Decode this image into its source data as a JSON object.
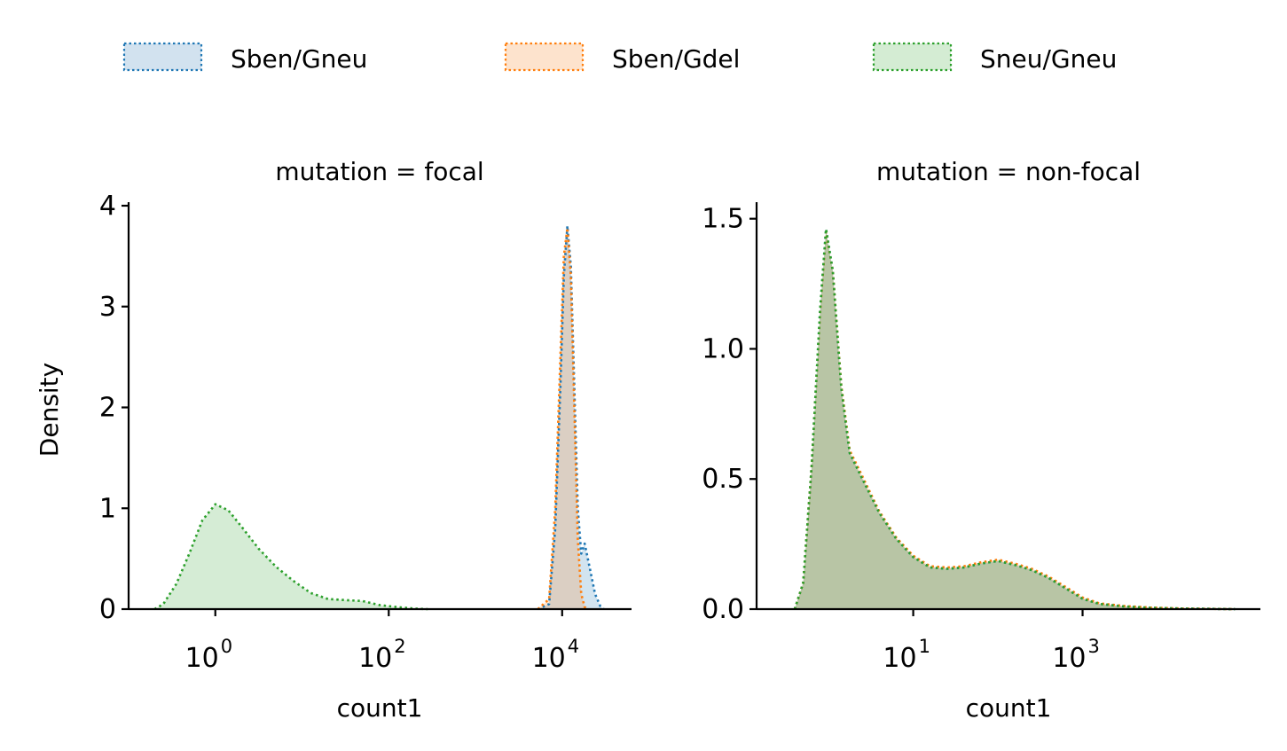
{
  "legend": {
    "placement": "top-center",
    "items": [
      {
        "label": "Sben/Gneu",
        "color": "#1f77b4",
        "fill": "#d2e2ef"
      },
      {
        "label": "Sben/Gdel",
        "color": "#ff7f0e",
        "fill": "#fde3cd"
      },
      {
        "label": "Sneu/Gneu",
        "color": "#2ca02c",
        "fill": "#d4ecd3"
      }
    ]
  },
  "chart_data": [
    {
      "type": "area",
      "title": "mutation = focal",
      "xlabel": "count1",
      "ylabel": "Density",
      "x_scale": "log10",
      "xlim_log10": [
        -1.0,
        4.8
      ],
      "ylim": [
        0,
        4
      ],
      "yticks": [
        0,
        1,
        2,
        3,
        4
      ],
      "ytick_labels": [
        "0",
        "1",
        "2",
        "3",
        "4"
      ],
      "xticks_log10": [
        0,
        2,
        4
      ],
      "xtick_base": [
        "10",
        "10",
        "10"
      ],
      "xtick_exp": [
        "0",
        "2",
        "4"
      ],
      "series": [
        {
          "name": "Sben/Gneu",
          "color": "#1f77b4",
          "x_log10": [
            3.72,
            3.85,
            3.92,
            3.98,
            4.02,
            4.06,
            4.1,
            4.14,
            4.18,
            4.22,
            4.26,
            4.32,
            4.38,
            4.44,
            4.48
          ],
          "y": [
            0,
            0.05,
            0.8,
            2.2,
            3.3,
            3.8,
            3.4,
            2.2,
            1.0,
            0.55,
            0.65,
            0.4,
            0.15,
            0.03,
            0
          ]
        },
        {
          "name": "Sben/Gdel",
          "color": "#ff7f0e",
          "x_log10": [
            3.72,
            3.85,
            3.92,
            3.98,
            4.02,
            4.06,
            4.1,
            4.14,
            4.18,
            4.22,
            4.26,
            4.3
          ],
          "y": [
            0,
            0.1,
            1.0,
            2.5,
            3.5,
            3.78,
            3.3,
            2.0,
            0.7,
            0.15,
            0.02,
            0
          ]
        },
        {
          "name": "Sneu/Gneu",
          "color": "#2ca02c",
          "x_log10": [
            -0.7,
            -0.6,
            -0.45,
            -0.3,
            -0.15,
            0,
            0.15,
            0.3,
            0.5,
            0.7,
            0.9,
            1.1,
            1.3,
            1.5,
            1.7,
            1.9,
            2.1,
            2.3,
            2.45
          ],
          "y": [
            0,
            0.05,
            0.25,
            0.55,
            0.88,
            1.04,
            0.98,
            0.82,
            0.6,
            0.42,
            0.28,
            0.16,
            0.1,
            0.09,
            0.08,
            0.04,
            0.02,
            0.005,
            0
          ]
        }
      ]
    },
    {
      "type": "area",
      "title": "mutation = non-focal",
      "xlabel": "count1",
      "ylabel": "",
      "x_scale": "log10",
      "xlim_log10": [
        -0.85,
        5.1
      ],
      "ylim": [
        0,
        1.55
      ],
      "yticks": [
        0,
        0.5,
        1.0,
        1.5
      ],
      "ytick_labels": [
        "0.0",
        "0.5",
        "1.0",
        "1.5"
      ],
      "xticks_log10": [
        1,
        3
      ],
      "xtick_base": [
        "10",
        "10"
      ],
      "xtick_exp": [
        "1",
        "3"
      ],
      "series": [
        {
          "name": "Sben/Gneu",
          "color": "#1f77b4",
          "x_log10": [
            -0.4,
            -0.3,
            -0.2,
            -0.1,
            -0.03,
            0.05,
            0.15,
            0.25,
            0.4,
            0.6,
            0.8,
            1.0,
            1.2,
            1.4,
            1.6,
            1.8,
            2.0,
            2.2,
            2.4,
            2.6,
            2.8,
            3.0,
            3.2,
            3.5,
            3.8,
            4.2,
            4.8
          ],
          "y": [
            0,
            0.1,
            0.55,
            1.15,
            1.46,
            1.3,
            0.85,
            0.6,
            0.5,
            0.37,
            0.27,
            0.2,
            0.16,
            0.155,
            0.16,
            0.175,
            0.185,
            0.17,
            0.15,
            0.12,
            0.08,
            0.04,
            0.02,
            0.01,
            0.005,
            0.002,
            0
          ]
        },
        {
          "name": "Sben/Gdel",
          "color": "#ff7f0e",
          "x_log10": [
            -0.4,
            -0.3,
            -0.2,
            -0.1,
            -0.03,
            0.05,
            0.15,
            0.25,
            0.4,
            0.6,
            0.8,
            1.0,
            1.2,
            1.4,
            1.6,
            1.8,
            2.0,
            2.2,
            2.4,
            2.6,
            2.8,
            3.0,
            3.2,
            3.5,
            3.8,
            4.2,
            4.8
          ],
          "y": [
            0,
            0.1,
            0.55,
            1.14,
            1.45,
            1.3,
            0.86,
            0.61,
            0.51,
            0.375,
            0.275,
            0.205,
            0.165,
            0.16,
            0.165,
            0.18,
            0.19,
            0.175,
            0.155,
            0.125,
            0.085,
            0.045,
            0.022,
            0.012,
            0.006,
            0.002,
            0
          ]
        },
        {
          "name": "Sneu/Gneu",
          "color": "#2ca02c",
          "x_log10": [
            -0.4,
            -0.3,
            -0.2,
            -0.1,
            -0.03,
            0.05,
            0.15,
            0.25,
            0.4,
            0.6,
            0.8,
            1.0,
            1.2,
            1.4,
            1.6,
            1.8,
            2.0,
            2.2,
            2.4,
            2.6,
            2.8,
            3.0,
            3.2,
            3.5,
            3.8,
            4.2,
            4.8
          ],
          "y": [
            0,
            0.1,
            0.55,
            1.15,
            1.46,
            1.3,
            0.85,
            0.6,
            0.5,
            0.37,
            0.27,
            0.2,
            0.16,
            0.155,
            0.16,
            0.175,
            0.185,
            0.17,
            0.15,
            0.12,
            0.08,
            0.04,
            0.02,
            0.01,
            0.005,
            0.002,
            0
          ]
        }
      ]
    }
  ]
}
